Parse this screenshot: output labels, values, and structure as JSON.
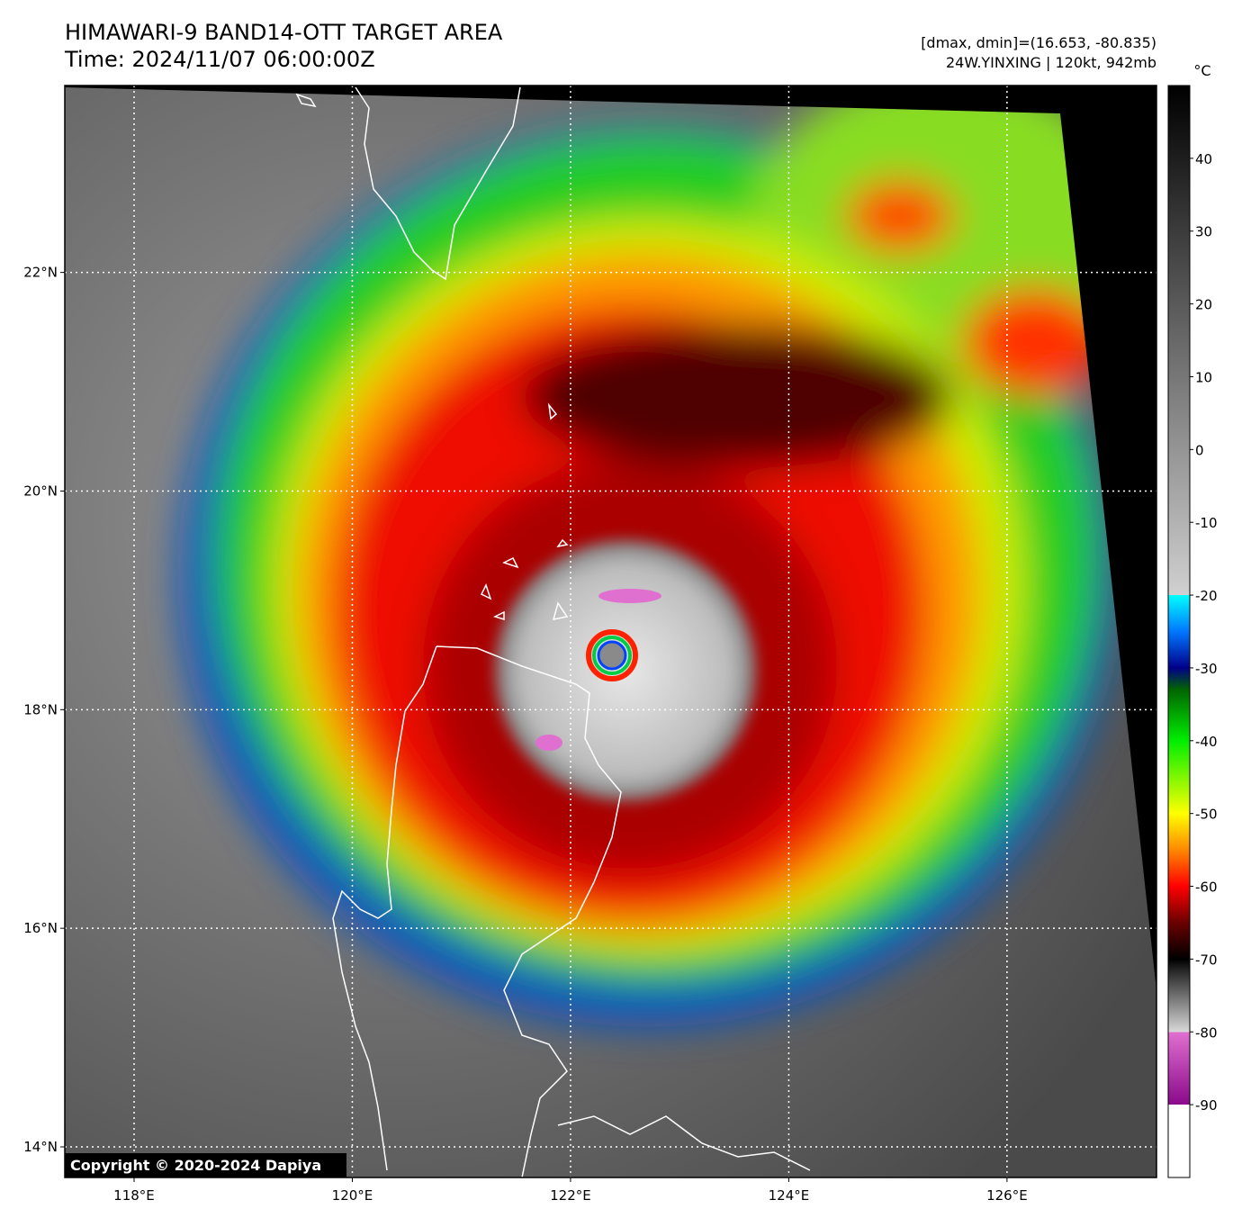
{
  "header": {
    "title": "HIMAWARI-9 BAND14-OTT TARGET AREA",
    "time": "Time: 2024/11/07 06:00:00Z",
    "stats": "[dmax, dmin]=(16.653, -80.835)",
    "storm": "24W.YINXING | 120kt, 942mb"
  },
  "map": {
    "lonlim": [
      117.365,
      127.37
    ],
    "latlim": [
      13.72,
      23.71
    ],
    "lon_ticks": [
      {
        "value": 118,
        "label": "118°E"
      },
      {
        "value": 120,
        "label": "120°E"
      },
      {
        "value": 122,
        "label": "122°E"
      },
      {
        "value": 124,
        "label": "124°E"
      },
      {
        "value": 126,
        "label": "126°E"
      }
    ],
    "lat_ticks": [
      {
        "value": 22,
        "label": "22°N"
      },
      {
        "value": 20,
        "label": "20°N"
      },
      {
        "value": 18,
        "label": "18°N"
      },
      {
        "value": 16,
        "label": "16°N"
      },
      {
        "value": 14,
        "label": "14°N"
      }
    ],
    "grid": true
  },
  "colorbar": {
    "unit": "°C",
    "range": [
      -100,
      50
    ],
    "ticks": [
      40,
      30,
      20,
      10,
      0,
      -10,
      -20,
      -30,
      -40,
      -50,
      -60,
      -70,
      -80,
      -90
    ],
    "colormap": [
      {
        "value": -100,
        "color": "#ffffff"
      },
      {
        "value": -90,
        "color": "#ffffff"
      },
      {
        "value": -90,
        "color": "#8a0a8a"
      },
      {
        "value": -80,
        "color": "#e070d0"
      },
      {
        "value": -80,
        "color": "#d8d8d8"
      },
      {
        "value": -72,
        "color": "#303030"
      },
      {
        "value": -70,
        "color": "#000000"
      },
      {
        "value": -65,
        "color": "#6a0000"
      },
      {
        "value": -60,
        "color": "#ff0000"
      },
      {
        "value": -55,
        "color": "#ff8800"
      },
      {
        "value": -50,
        "color": "#ffff00"
      },
      {
        "value": -40,
        "color": "#00ee00"
      },
      {
        "value": -33,
        "color": "#006600"
      },
      {
        "value": -30,
        "color": "#000088"
      },
      {
        "value": -25,
        "color": "#0077ff"
      },
      {
        "value": -20,
        "color": "#00ffff"
      },
      {
        "value": -20,
        "color": "#d0d0d0"
      },
      {
        "value": 50,
        "color": "#000000"
      }
    ]
  },
  "copyright": "Copyright © 2020-2024 Dapiya"
}
